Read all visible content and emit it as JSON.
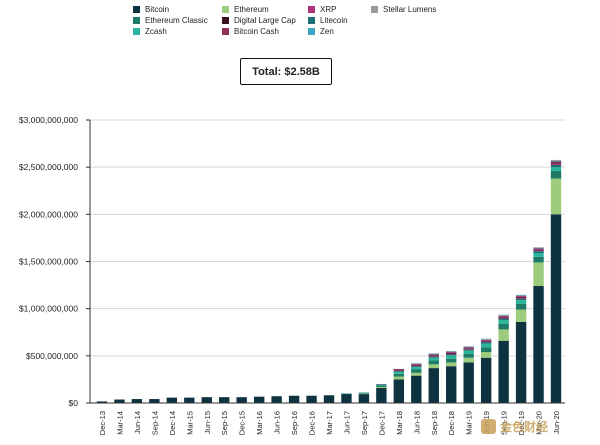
{
  "total_label": "Total: $2.58B",
  "watermark_text": "金色财经",
  "legend": [
    {
      "name": "Bitcoin",
      "color": "#0d3340"
    },
    {
      "name": "Ethereum",
      "color": "#9ccc7c"
    },
    {
      "name": "XRP",
      "color": "#b03278"
    },
    {
      "name": "Stellar Lumens",
      "color": "#9a9a9a"
    },
    {
      "name": "Ethereum Classic",
      "color": "#1f7a68"
    },
    {
      "name": "Digital Large Cap",
      "color": "#3a0f22"
    },
    {
      "name": "Litecoin",
      "color": "#1c6f78"
    },
    {
      "name": "Zcash",
      "color": "#2bb59a"
    },
    {
      "name": "Bitcoin Cash",
      "color": "#8f3158"
    },
    {
      "name": "Zen",
      "color": "#3aa6c4"
    }
  ],
  "chart_data": {
    "type": "bar",
    "stacked": true,
    "title": "",
    "xlabel": "",
    "ylabel": "",
    "ylim": [
      0,
      3000000000
    ],
    "y_ticks": [
      0,
      500000000,
      1000000000,
      1500000000,
      2000000000,
      2500000000,
      3000000000
    ],
    "y_tick_labels": [
      "$0",
      "$500,000,000",
      "$1,000,000,000",
      "$1,500,000,000",
      "$2,000,000,000",
      "$2,500,000,000",
      "$3,000,000,000"
    ],
    "categories": [
      "Dec-13",
      "Mar-14",
      "Jun-14",
      "Sep-14",
      "Dec-14",
      "Mar-15",
      "Jun-15",
      "Sep-15",
      "Dec-15",
      "Mar-16",
      "Jun-16",
      "Sep-16",
      "Dec-16",
      "Mar-17",
      "Jun-17",
      "Sep-17",
      "Dec-17",
      "Mar-18",
      "Jun-18",
      "Sep-18",
      "Dec-18",
      "Mar-19",
      "Jun-19",
      "Sep-19",
      "Dec-19",
      "Mar-20",
      "Jun-20"
    ],
    "series": [
      {
        "name": "Bitcoin",
        "color": "#0d3340",
        "values": [
          20000000,
          40000000,
          45000000,
          45000000,
          60000000,
          60000000,
          65000000,
          65000000,
          65000000,
          70000000,
          75000000,
          80000000,
          80000000,
          85000000,
          95000000,
          95000000,
          160000000,
          250000000,
          290000000,
          370000000,
          390000000,
          430000000,
          480000000,
          660000000,
          860000000,
          1240000000,
          2000000000
        ]
      },
      {
        "name": "Ethereum",
        "color": "#9ccc7c",
        "values": [
          0,
          0,
          0,
          0,
          0,
          0,
          0,
          0,
          0,
          0,
          0,
          0,
          0,
          0,
          0,
          5000000,
          10000000,
          30000000,
          30000000,
          40000000,
          40000000,
          50000000,
          60000000,
          120000000,
          130000000,
          250000000,
          380000000
        ]
      },
      {
        "name": "Ethereum Classic",
        "color": "#1f7a68",
        "values": [
          0,
          0,
          0,
          0,
          0,
          0,
          0,
          0,
          0,
          0,
          0,
          0,
          0,
          0,
          5000000,
          5000000,
          15000000,
          30000000,
          35000000,
          40000000,
          40000000,
          40000000,
          50000000,
          60000000,
          60000000,
          60000000,
          80000000
        ]
      },
      {
        "name": "Zcash",
        "color": "#2bb59a",
        "values": [
          0,
          0,
          0,
          0,
          0,
          0,
          0,
          0,
          0,
          0,
          0,
          0,
          0,
          0,
          5000000,
          5000000,
          10000000,
          20000000,
          25000000,
          30000000,
          35000000,
          35000000,
          40000000,
          40000000,
          40000000,
          40000000,
          40000000
        ]
      },
      {
        "name": "Litecoin",
        "color": "#1c6f78",
        "values": [
          0,
          0,
          0,
          0,
          0,
          0,
          0,
          0,
          0,
          0,
          0,
          0,
          0,
          0,
          0,
          5000000,
          5000000,
          10000000,
          10000000,
          10000000,
          10000000,
          10000000,
          15000000,
          15000000,
          15000000,
          20000000,
          25000000
        ]
      },
      {
        "name": "Bitcoin Cash",
        "color": "#8f3158",
        "values": [
          0,
          0,
          0,
          0,
          0,
          0,
          0,
          0,
          0,
          0,
          0,
          0,
          0,
          0,
          0,
          0,
          5000000,
          10000000,
          10000000,
          10000000,
          10000000,
          10000000,
          10000000,
          15000000,
          15000000,
          15000000,
          20000000
        ]
      },
      {
        "name": "Digital Large Cap",
        "color": "#3a0f22",
        "values": [
          0,
          0,
          0,
          0,
          0,
          0,
          0,
          0,
          0,
          0,
          0,
          0,
          0,
          0,
          0,
          0,
          0,
          5000000,
          5000000,
          5000000,
          5000000,
          5000000,
          5000000,
          5000000,
          5000000,
          5000000,
          5000000
        ]
      },
      {
        "name": "XRP",
        "color": "#b03278",
        "values": [
          0,
          0,
          0,
          0,
          0,
          0,
          0,
          0,
          0,
          0,
          0,
          0,
          0,
          0,
          0,
          0,
          0,
          5000000,
          10000000,
          10000000,
          10000000,
          10000000,
          10000000,
          10000000,
          10000000,
          10000000,
          10000000
        ]
      },
      {
        "name": "Zen",
        "color": "#3aa6c4",
        "values": [
          0,
          0,
          0,
          0,
          0,
          0,
          0,
          0,
          0,
          0,
          0,
          0,
          0,
          0,
          0,
          0,
          0,
          0,
          5000000,
          5000000,
          5000000,
          5000000,
          5000000,
          5000000,
          5000000,
          5000000,
          5000000
        ]
      },
      {
        "name": "Stellar Lumens",
        "color": "#9a9a9a",
        "values": [
          0,
          0,
          0,
          0,
          0,
          0,
          0,
          0,
          0,
          0,
          0,
          0,
          0,
          0,
          0,
          0,
          0,
          5000000,
          5000000,
          10000000,
          10000000,
          10000000,
          10000000,
          10000000,
          10000000,
          10000000,
          15000000
        ]
      }
    ],
    "grid": true,
    "legend_position": "top"
  }
}
